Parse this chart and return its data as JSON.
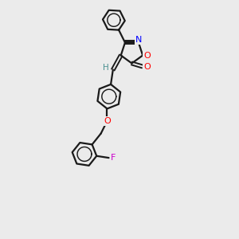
{
  "background_color": "#ebebeb",
  "bond_color": "#1a1a1a",
  "atom_colors": {
    "N": "#0000ff",
    "O": "#ff0000",
    "F": "#cc00cc",
    "H": "#4a9090",
    "C": "#1a1a1a"
  },
  "figsize": [
    3.0,
    3.0
  ],
  "dpi": 100,
  "xlim": [
    -0.5,
    3.0
  ],
  "ylim": [
    -3.8,
    2.0
  ]
}
